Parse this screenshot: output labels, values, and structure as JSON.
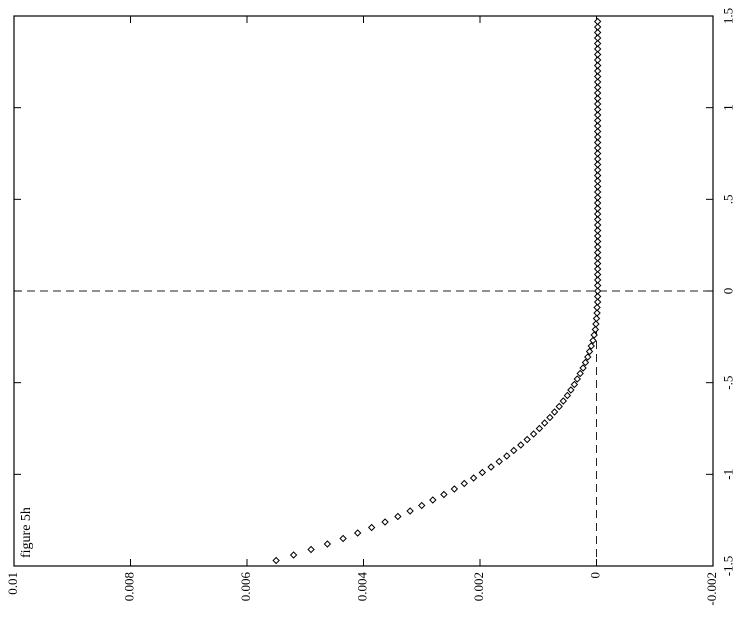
{
  "chart_data": {
    "type": "scatter",
    "rotated": "90deg-ccw",
    "title": "",
    "annotation": "figure 5h",
    "xlabel": "",
    "ylabel": "",
    "xlim": [
      -1.5,
      1.5
    ],
    "ylim": [
      -0.002,
      0.01
    ],
    "x_ticks": [
      "-1.5",
      "-1",
      "-.5",
      "0",
      ".5",
      "1",
      "1.5"
    ],
    "y_ticks": [
      "-0.002",
      "0",
      "0.002",
      "0.004",
      "0.006",
      "0.008",
      "0.01"
    ],
    "reference_lines": {
      "x": 0,
      "y": 0
    },
    "marker": "diamond",
    "series": [
      {
        "x": [
          -1.47,
          -1.44,
          -1.41,
          -1.38,
          -1.35,
          -1.32,
          -1.29,
          -1.26,
          -1.23,
          -1.2,
          -1.17,
          -1.14,
          -1.11,
          -1.08,
          -1.05,
          -1.02,
          -0.99,
          -0.96,
          -0.93,
          -0.9,
          -0.87,
          -0.84,
          -0.81,
          -0.78,
          -0.75,
          -0.72,
          -0.69,
          -0.66,
          -0.63,
          -0.6,
          -0.57,
          -0.54,
          -0.51,
          -0.48,
          -0.45,
          -0.42,
          -0.39,
          -0.36,
          -0.33,
          -0.3,
          -0.27,
          -0.24,
          -0.21,
          -0.18,
          -0.15,
          -0.12,
          -0.09,
          -0.06,
          -0.03,
          0.0,
          0.03,
          0.06,
          0.09,
          0.12,
          0.15,
          0.18,
          0.21,
          0.24,
          0.27,
          0.3,
          0.33,
          0.36,
          0.39,
          0.42,
          0.45,
          0.48,
          0.51,
          0.54,
          0.57,
          0.6,
          0.63,
          0.66,
          0.69,
          0.72,
          0.75,
          0.78,
          0.81,
          0.84,
          0.87,
          0.9,
          0.93,
          0.96,
          0.99,
          1.02,
          1.05,
          1.08,
          1.11,
          1.14,
          1.17,
          1.2,
          1.23,
          1.26,
          1.29,
          1.32,
          1.35,
          1.38,
          1.41,
          1.44,
          1.47
        ],
        "y": [
          0.0055,
          0.0052,
          0.0049,
          0.00462,
          0.00435,
          0.0041,
          0.00386,
          0.00363,
          0.00341,
          0.0032,
          0.003,
          0.00281,
          0.00262,
          0.00244,
          0.00227,
          0.00211,
          0.00196,
          0.00181,
          0.00167,
          0.00154,
          0.00142,
          0.0013,
          0.00119,
          0.00108,
          0.00098,
          0.00089,
          0.0008,
          0.00072,
          0.00064,
          0.00057,
          0.0005,
          0.00044,
          0.00038,
          0.00033,
          0.00028,
          0.00023,
          0.00019,
          0.00015,
          0.00012,
          9e-05,
          6e-05,
          4e-05,
          2e-05,
          1e-05,
          0.0,
          -1e-05,
          -1e-05,
          -2e-05,
          -2e-05,
          -2e-05,
          -2e-05,
          -2e-05,
          -2e-05,
          -2e-05,
          -2e-05,
          -2e-05,
          -2e-05,
          -2e-05,
          -2e-05,
          -2e-05,
          -2e-05,
          -2e-05,
          -2e-05,
          -2e-05,
          -2e-05,
          -2e-05,
          -2e-05,
          -2e-05,
          -2e-05,
          -2e-05,
          -2e-05,
          -2e-05,
          -2e-05,
          -2e-05,
          -2e-05,
          -2e-05,
          -2e-05,
          -2e-05,
          -2e-05,
          -2e-05,
          -2e-05,
          -2e-05,
          -2e-05,
          -2e-05,
          -2e-05,
          -2e-05,
          -2e-05,
          -2e-05,
          -2e-05,
          -2e-05,
          -2e-05,
          -2e-05,
          -2e-05,
          -2e-05,
          -2e-05,
          -2e-05,
          -2e-05,
          -2e-05,
          -2e-05
        ]
      }
    ]
  }
}
